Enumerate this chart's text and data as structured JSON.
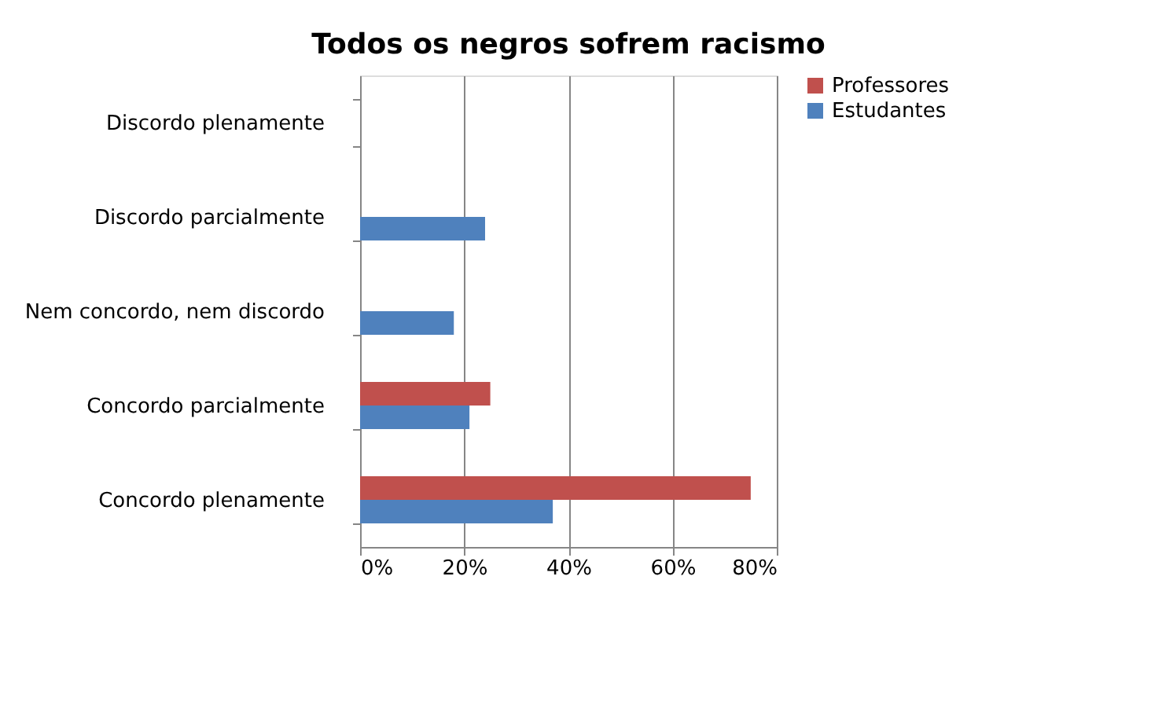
{
  "chart_data": {
    "type": "bar",
    "orientation": "horizontal",
    "title": "Todos os negros sofrem racismo",
    "categories": [
      "Discordo plenamente",
      "Discordo parcialmente",
      "Nem concordo, nem discordo",
      "Concordo parcialmente",
      "Concordo plenamente"
    ],
    "series": [
      {
        "name": "Professores",
        "color": "#c0504d",
        "values": [
          null,
          null,
          null,
          25,
          75
        ]
      },
      {
        "name": "Estudantes",
        "color": "#4f81bd",
        "values": [
          null,
          24,
          18,
          21,
          37
        ]
      }
    ],
    "xlim": [
      0,
      80
    ],
    "xticks": [
      {
        "value": 0,
        "label": "0%"
      },
      {
        "value": 20,
        "label": "20%"
      },
      {
        "value": 40,
        "label": "40%"
      },
      {
        "value": 60,
        "label": "60%"
      },
      {
        "value": 80,
        "label": "80%"
      }
    ],
    "grid": "x",
    "legend": "right"
  }
}
